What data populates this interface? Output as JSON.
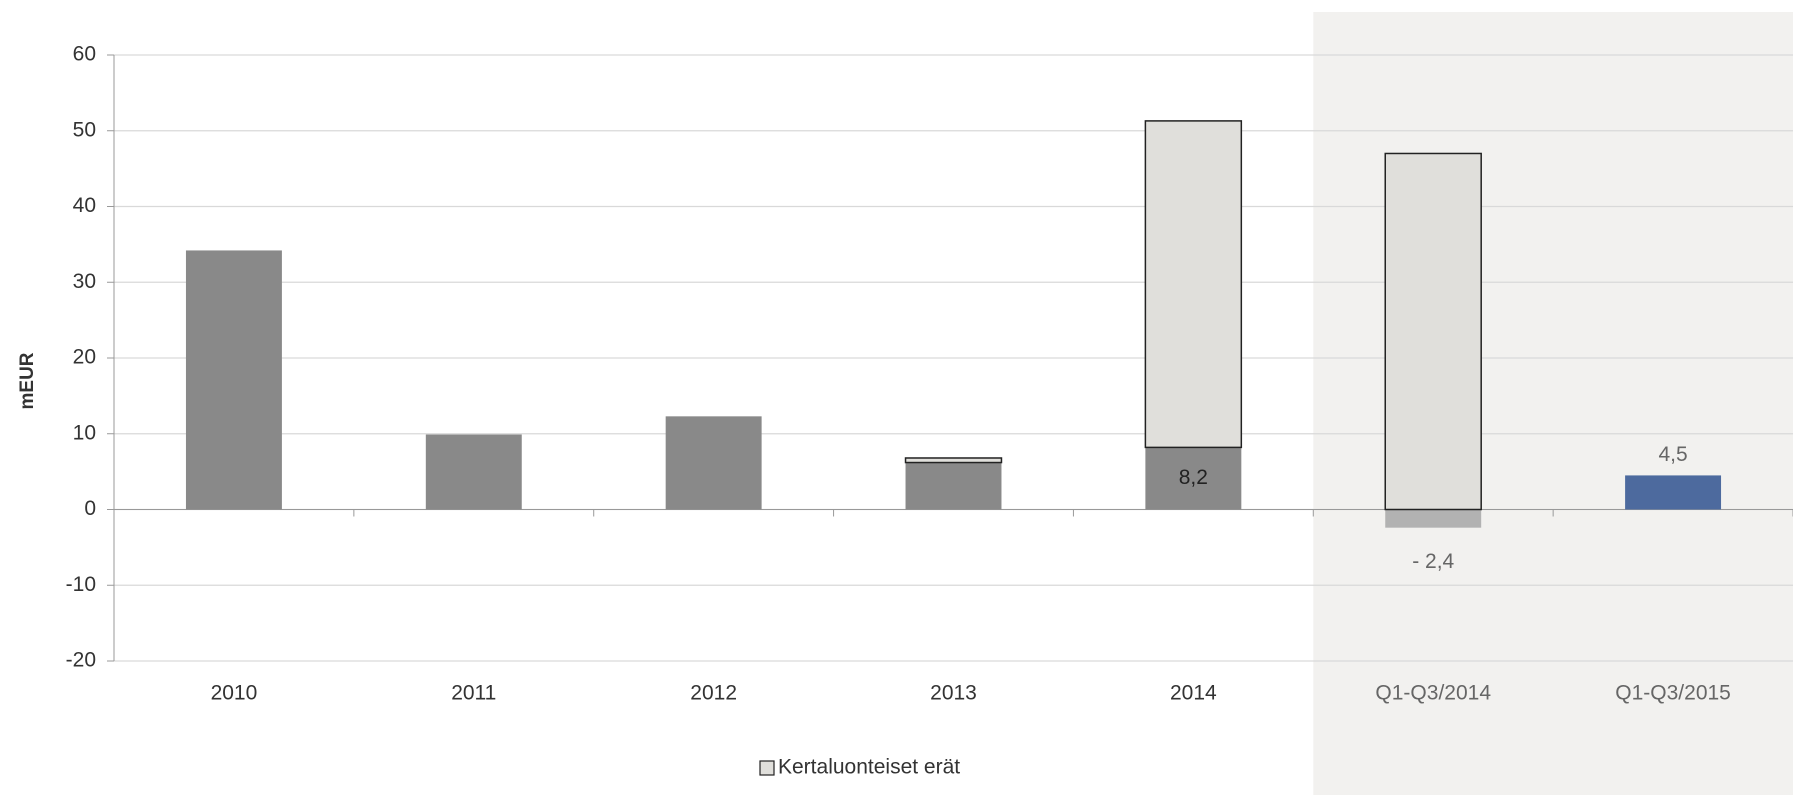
{
  "chart_data": {
    "type": "bar",
    "stacked": true,
    "y_label": "mEUR",
    "categories": [
      "2010",
      "2011",
      "2012",
      "2013",
      "2014",
      "Q1-Q3/2014",
      "Q1-Q3/2015"
    ],
    "series": [
      {
        "colors": [
          "#898989",
          "#898989",
          "#898989",
          "#898989",
          "#898989",
          "#b2b2b2",
          "#4d6a9e"
        ],
        "values": [
          34.2,
          9.9,
          12.3,
          6.2,
          8.2,
          -2.4,
          4.5
        ],
        "value_labels": [
          null,
          null,
          null,
          null,
          "8,2",
          "- 2,4",
          "4,5"
        ]
      },
      {
        "name": "Kertaluonteiset erät",
        "color": "#e0dfdb",
        "edge": "#222222",
        "values": [
          null,
          null,
          null,
          0.6,
          43.1,
          47.0,
          null
        ]
      }
    ],
    "ylim": [
      -20,
      60
    ],
    "yticks": [
      -20,
      -10,
      0,
      10,
      20,
      30,
      40,
      50,
      60
    ],
    "grid": true
  }
}
